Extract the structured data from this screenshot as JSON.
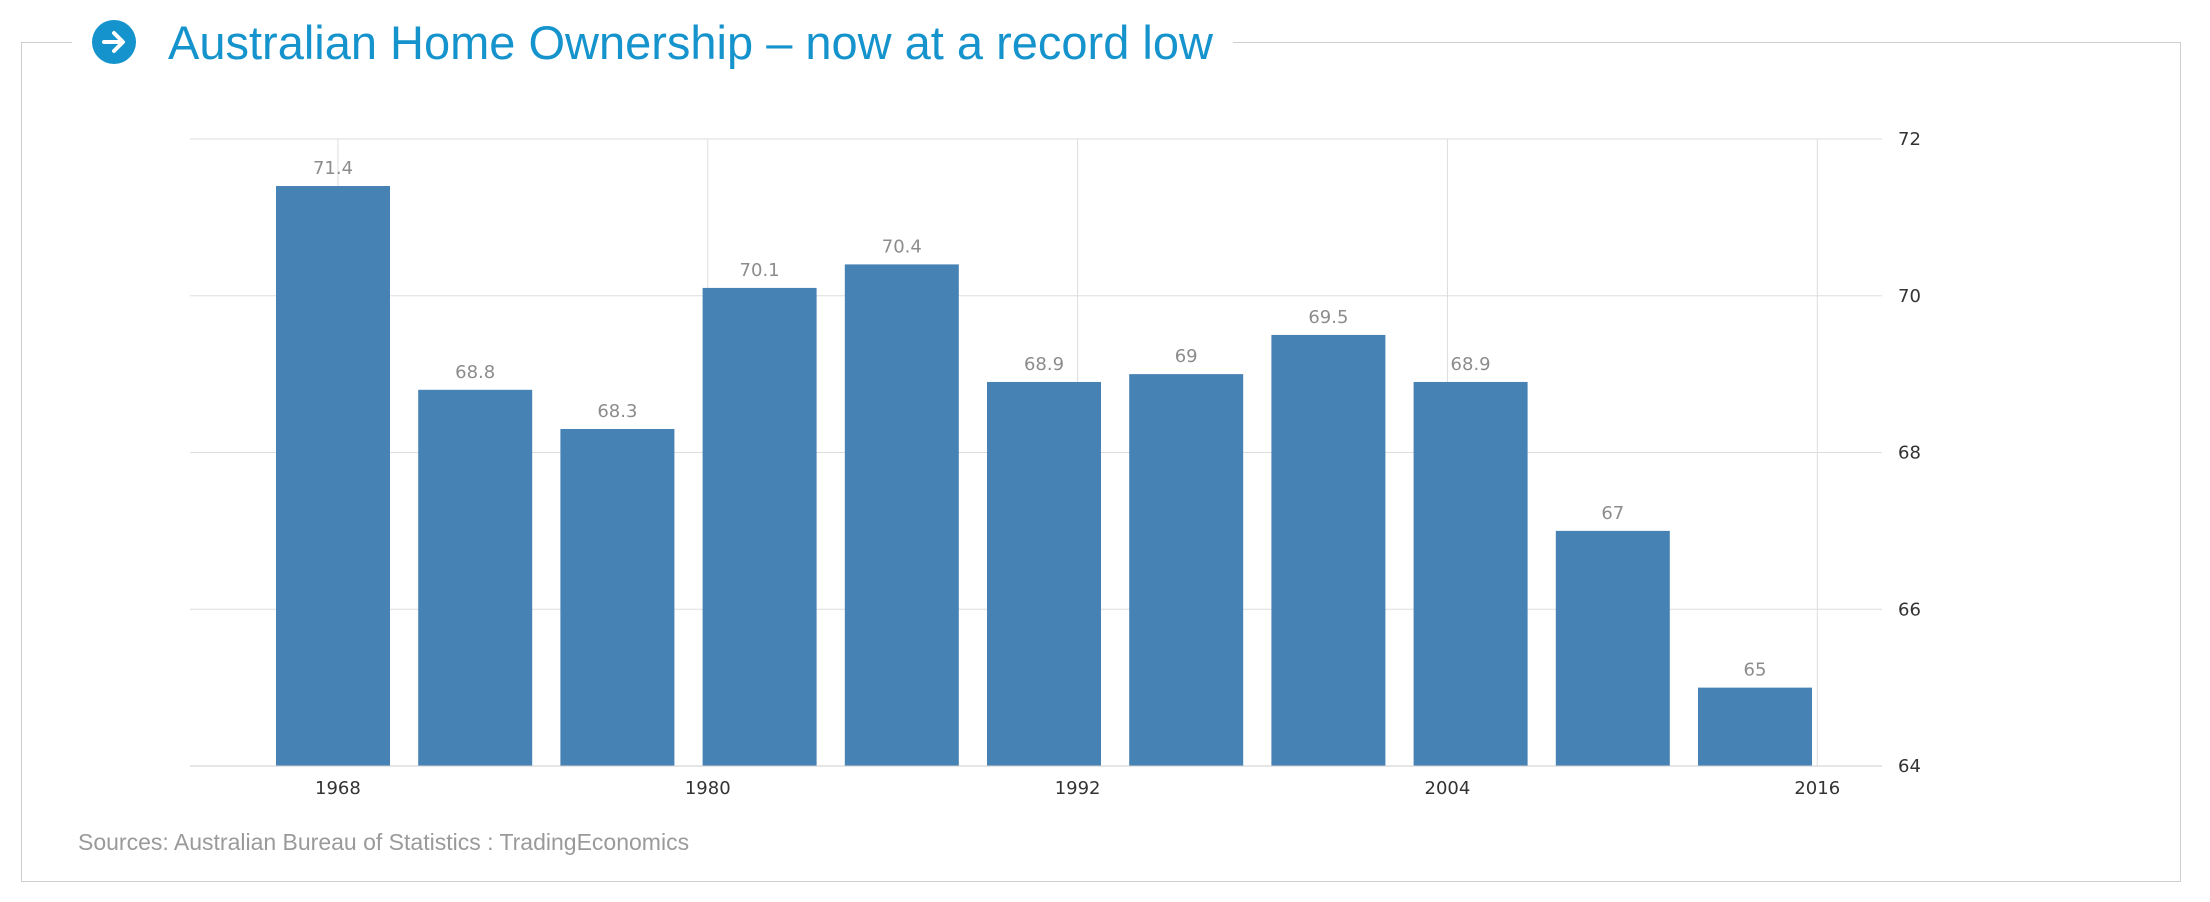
{
  "title": "Australian Home Ownership – now at a record low",
  "icon": "arrow-right-circle-icon",
  "source": "Sources: Australian Bureau of Statistics : TradingEconomics",
  "colors": {
    "accent": "#1593cc",
    "bar": "#4682b4",
    "grid": "#dddddd",
    "label": "#8c8c8c",
    "axis_text": "#333333"
  },
  "chart_data": {
    "type": "bar",
    "categories": [
      "1966",
      "1971",
      "1976",
      "1981",
      "1986",
      "1991",
      "1996",
      "2001",
      "2006",
      "2011",
      "2016"
    ],
    "values": [
      71.4,
      68.8,
      68.3,
      70.1,
      70.4,
      68.9,
      69,
      69.5,
      68.9,
      67,
      65
    ],
    "data_labels": [
      "71.4",
      "68.8",
      "68.3",
      "70.1",
      "70.4",
      "68.9",
      "69",
      "69.5",
      "68.9",
      "67",
      "65"
    ],
    "x_ticks": [
      1968,
      1980,
      1992,
      2004,
      2016
    ],
    "y_ticks": [
      64,
      66,
      68,
      70,
      72
    ],
    "ylim": [
      64,
      72
    ],
    "xlim": [
      1963.2,
      2018.1
    ],
    "y_axis_side": "right",
    "grid": true,
    "legend": "none"
  }
}
